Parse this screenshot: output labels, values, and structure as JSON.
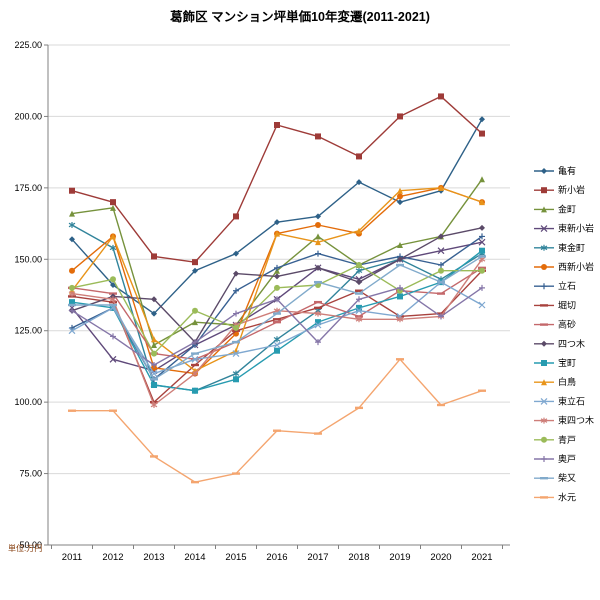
{
  "chart_data": {
    "type": "line",
    "title": "葛飾区 マンション坪単価10年変遷(2011-2021)",
    "unit_label": "単位:万円",
    "x": [
      "2011",
      "2012",
      "2013",
      "2014",
      "2015",
      "2016",
      "2017",
      "2018",
      "2019",
      "2020",
      "2021"
    ],
    "ylim": [
      50,
      225
    ],
    "y_ticks": [
      225,
      200,
      175,
      150,
      125,
      100,
      75,
      50
    ],
    "y_tick_labels": [
      "225.00",
      "200.00",
      "175.00",
      "150.00",
      "125.00",
      "100.00",
      "75.00",
      "50.00"
    ],
    "grid": true,
    "legend_position": "right",
    "axis_color": "#808080",
    "grid_color": "#D9D9D9",
    "title_color": "#000000",
    "unit_label_color": "#843C0C",
    "series": [
      {
        "name": "亀有",
        "color": "#2E6188",
        "marker": "diamond",
        "values": [
          157,
          141,
          131,
          146,
          152,
          163,
          165,
          177,
          170,
          174,
          199
        ]
      },
      {
        "name": "新小岩",
        "color": "#9E3B38",
        "marker": "square",
        "values": [
          174,
          170,
          151,
          149,
          165,
          197,
          193,
          186,
          200,
          207,
          194
        ]
      },
      {
        "name": "金町",
        "color": "#76923C",
        "marker": "triangle",
        "values": [
          166,
          168,
          120,
          128,
          127,
          146,
          158,
          148,
          155,
          158,
          178
        ]
      },
      {
        "name": "東新小岩",
        "color": "#5F497A",
        "marker": "x",
        "values": [
          133,
          115,
          111,
          120,
          127,
          136,
          147,
          143,
          150,
          153,
          156
        ]
      },
      {
        "name": "東金町",
        "color": "#31849B",
        "marker": "asterisk",
        "values": [
          162,
          154,
          106,
          104,
          110,
          122,
          132,
          146,
          150,
          143,
          152
        ]
      },
      {
        "name": "西新小岩",
        "color": "#E36C0A",
        "marker": "circle",
        "values": [
          146,
          158,
          112,
          110,
          124,
          159,
          162,
          159,
          172,
          175,
          170
        ]
      },
      {
        "name": "立石",
        "color": "#376092",
        "marker": "plus",
        "values": [
          126,
          133,
          108,
          120,
          139,
          147,
          152,
          148,
          151,
          148,
          158
        ]
      },
      {
        "name": "堀切",
        "color": "#A8423E",
        "marker": "dash",
        "values": [
          137,
          135,
          100,
          113,
          125,
          129,
          133,
          139,
          130,
          131,
          146
        ]
      },
      {
        "name": "高砂",
        "color": "#C4686B",
        "marker": "dash",
        "values": [
          140,
          138,
          117,
          115,
          121,
          128,
          135,
          130,
          139,
          138,
          147
        ]
      },
      {
        "name": "四つ木",
        "color": "#5B4A68",
        "marker": "diamond",
        "values": [
          132,
          137,
          136,
          121,
          145,
          144,
          147,
          142,
          150,
          158,
          161
        ]
      },
      {
        "name": "宝町",
        "color": "#279BB0",
        "marker": "square",
        "values": [
          135,
          133,
          106,
          104,
          108,
          118,
          128,
          133,
          137,
          142,
          153
        ]
      },
      {
        "name": "白鳥",
        "color": "#E8941A",
        "marker": "triangle",
        "values": [
          139,
          158,
          122,
          111,
          118,
          159,
          156,
          160,
          174,
          175,
          170
        ]
      },
      {
        "name": "東立石",
        "color": "#7FA8D0",
        "marker": "x",
        "values": [
          125,
          133,
          110,
          115,
          117,
          120,
          127,
          132,
          130,
          142,
          134
        ]
      },
      {
        "name": "東四つ木",
        "color": "#CE7E79",
        "marker": "asterisk",
        "values": [
          138,
          136,
          99,
          110,
          127,
          132,
          131,
          129,
          129,
          130,
          150
        ]
      },
      {
        "name": "青戸",
        "color": "#9BBB59",
        "marker": "circle",
        "values": [
          140,
          143,
          117,
          132,
          126,
          140,
          141,
          148,
          139,
          146,
          146
        ]
      },
      {
        "name": "奥戸",
        "color": "#8576A8",
        "marker": "plus",
        "values": [
          132,
          123,
          113,
          121,
          131,
          136,
          121,
          136,
          140,
          130,
          140
        ]
      },
      {
        "name": "柴又",
        "color": "#81AACB",
        "marker": "dash",
        "values": [
          134,
          134,
          108,
          117,
          121,
          131,
          142,
          138,
          148,
          142,
          151
        ]
      },
      {
        "name": "水元",
        "color": "#F4A56F",
        "marker": "dash",
        "values": [
          97,
          97,
          81,
          72,
          75,
          90,
          89,
          98,
          115,
          99,
          104
        ]
      }
    ]
  }
}
